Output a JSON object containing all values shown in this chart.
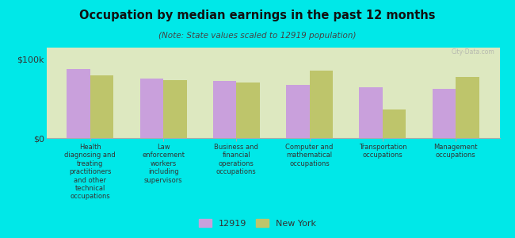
{
  "title": "Occupation by median earnings in the past 12 months",
  "subtitle": "(Note: State values scaled to 12919 population)",
  "background_color": "#00e8e8",
  "plot_bg_color": "#dde8c0",
  "categories": [
    "Health\ndiagnosing and\ntreating\npractitioners\nand other\ntechnical\noccupations",
    "Law\nenforcement\nworkers\nincluding\nsupervisors",
    "Business and\nfinancial\noperations\noccupations",
    "Computer and\nmathematical\noccupations",
    "Transportation\noccupations",
    "Management\noccupations"
  ],
  "values_local": [
    88000,
    76000,
    73000,
    68000,
    65000,
    63000
  ],
  "values_state": [
    80000,
    74000,
    71000,
    86000,
    36000,
    78000
  ],
  "color_local": "#c9a0dc",
  "color_state": "#bec56b",
  "ylim": [
    0,
    115000
  ],
  "yticks": [
    0,
    100000
  ],
  "ytick_labels": [
    "$0",
    "$100k"
  ],
  "legend_local": "12919",
  "legend_state": "New York",
  "bar_width": 0.32,
  "watermark": "City-Data.com"
}
